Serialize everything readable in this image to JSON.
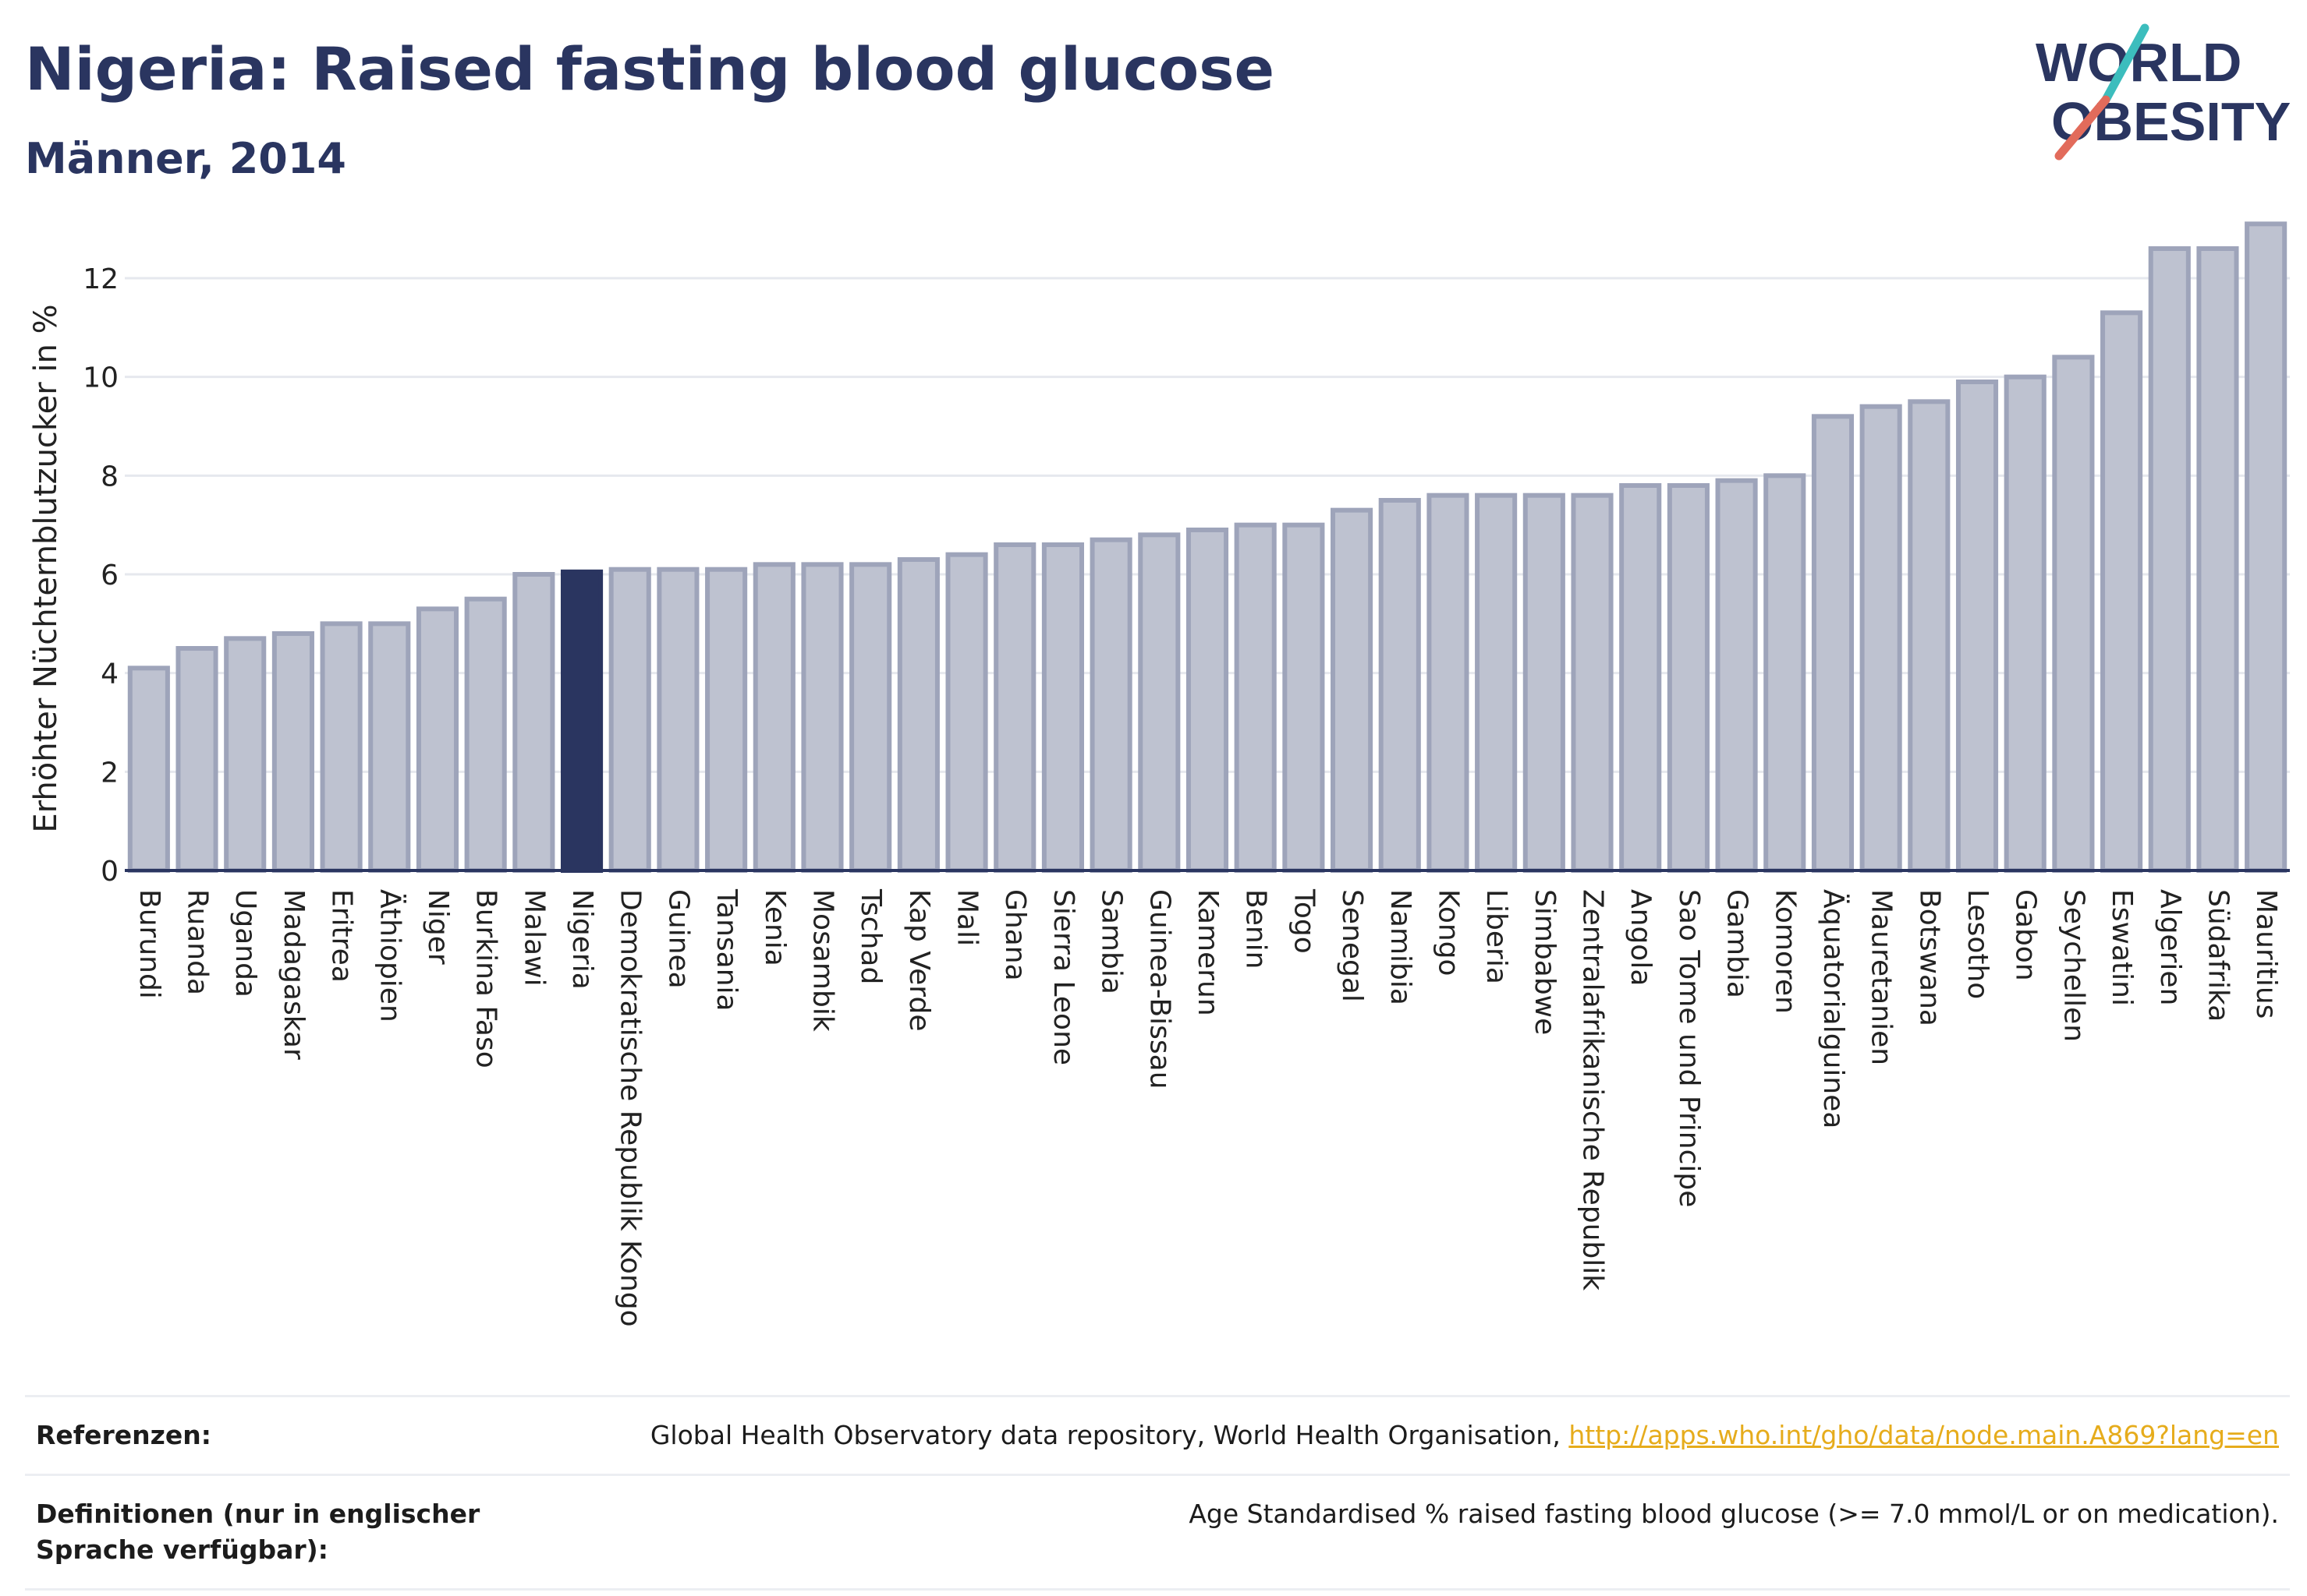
{
  "title": "Nigeria: Raised fasting blood glucose",
  "subtitle": "Männer, 2014",
  "logo": {
    "line1": "WORLD",
    "line2": "OBESITY",
    "colors": [
      "#2a3560",
      "#e26b5b",
      "#3cbdbd"
    ]
  },
  "chart_data": {
    "type": "bar",
    "ylabel": "Erhöhter Nüchternblutzucker in %",
    "xlabel": "",
    "ylim": [
      0,
      13.5
    ],
    "yticks": [
      0,
      2,
      4,
      6,
      8,
      10,
      12
    ],
    "grid": true,
    "highlight": "Nigeria",
    "colors": {
      "bar": "#bec2d0",
      "bar_border": "#9ea4ba",
      "highlight": "#2a3560"
    },
    "categories": [
      "Burundi",
      "Ruanda",
      "Uganda",
      "Madagaskar",
      "Eritrea",
      "Äthiopien",
      "Niger",
      "Burkina Faso",
      "Malawi",
      "Nigeria",
      "Demokratische Republik Kongo",
      "Guinea",
      "Tansania",
      "Kenia",
      "Mosambik",
      "Tschad",
      "Kap Verde",
      "Mali",
      "Ghana",
      "Sierra Leone",
      "Sambia",
      "Guinea-Bissau",
      "Kamerun",
      "Benin",
      "Togo",
      "Senegal",
      "Namibia",
      "Kongo",
      "Liberia",
      "Simbabwe",
      "Zentralafrikanische Republik",
      "Angola",
      "Sao Tome und Principe",
      "Gambia",
      "Komoren",
      "Äquatorialguinea",
      "Mauretanien",
      "Botswana",
      "Lesotho",
      "Gabon",
      "Seychellen",
      "Eswatini",
      "Algerien",
      "Südafrika",
      "Mauritius"
    ],
    "values": [
      4.1,
      4.5,
      4.7,
      4.8,
      5.0,
      5.0,
      5.3,
      5.5,
      6.0,
      6.05,
      6.1,
      6.1,
      6.1,
      6.2,
      6.2,
      6.2,
      6.3,
      6.4,
      6.6,
      6.6,
      6.7,
      6.8,
      6.9,
      7.0,
      7.0,
      7.3,
      7.5,
      7.6,
      7.6,
      7.6,
      7.6,
      7.8,
      7.8,
      7.9,
      8.0,
      9.2,
      9.4,
      9.5,
      9.9,
      10.0,
      10.4,
      11.3,
      12.6,
      12.6,
      13.1
    ]
  },
  "references": {
    "label": "Referenzen:",
    "text": "Global Health Observatory data repository, World Health Organisation,",
    "link": "http://apps.who.int/gho/data/node.main.A869?lang=en"
  },
  "definitions": {
    "label": "Definitionen (nur in englischer Sprache verfügbar):",
    "text": "Age Standardised % raised fasting blood glucose (>= 7.0 mmol/L or on medication)."
  }
}
